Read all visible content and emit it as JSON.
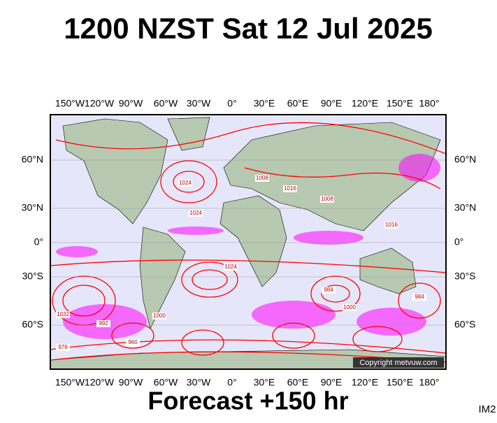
{
  "header": {
    "title": "1200 NZST Sat 12 Jul 2025"
  },
  "map": {
    "lon_labels": [
      "150°W",
      "120°W",
      "90°W",
      "60°W",
      "30°W",
      "0°",
      "30°E",
      "60°E",
      "90°E",
      "120°E",
      "150°E",
      "180°"
    ],
    "lat_labels": [
      "60°N",
      "30°N",
      "0°",
      "30°S",
      "60°S"
    ],
    "isobar_labels": [
      "1024",
      "1024",
      "1008",
      "1016",
      "1008",
      "1024",
      "1000",
      "984",
      "976",
      "1032",
      "960",
      "992",
      "1016",
      "1000",
      "984"
    ],
    "copyright": "Copyright metvuw.com"
  },
  "footer": {
    "forecast": "Forecast +150 hr",
    "code": "IM2"
  }
}
